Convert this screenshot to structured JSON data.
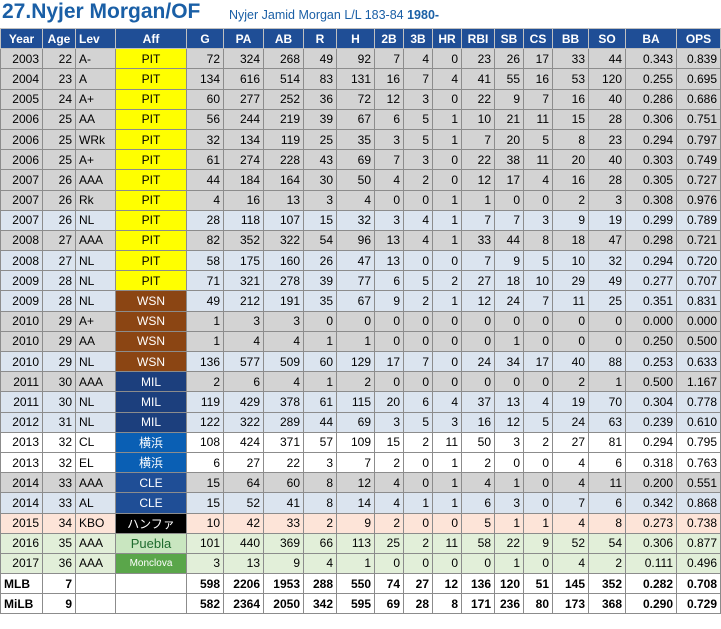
{
  "header": {
    "title": "27.Nyjer Morgan/OF",
    "subtitle": "Nyjer Jamid Morgan L/L 183-84",
    "birth_year": "1980-"
  },
  "columns": [
    "Year",
    "Age",
    "Lev",
    "Aff",
    "G",
    "PA",
    "AB",
    "R",
    "H",
    "2B",
    "3B",
    "HR",
    "RBI",
    "SB",
    "CS",
    "BB",
    "SO",
    "BA",
    "OPS"
  ],
  "colors": {
    "header_bg": "#1f4e96",
    "title_blue": "#1a5fa6",
    "row_gray": "#d3d3d3",
    "row_blue": "#dbe4ef",
    "row_white": "#ffffff",
    "row_pink": "#fde4d8",
    "row_green": "#e2efd9",
    "aff_PIT": "#ffff00",
    "aff_WSN": "#8b4513",
    "aff_MIL": "#1c3f7d",
    "aff_yokohama": "#0a5fb4",
    "aff_CLE": "#1f4e96",
    "aff_hanwha": "#000000",
    "aff_green": "#c9e6c0"
  },
  "rows": [
    {
      "cells": [
        "2003",
        "22",
        "A-",
        "PIT",
        "72",
        "324",
        "268",
        "49",
        "92",
        "7",
        "4",
        "0",
        "23",
        "26",
        "17",
        "33",
        "44",
        "0.343",
        "0.839"
      ],
      "row": "gray",
      "aff_bg": "#ffff00",
      "aff_fg": "#000000"
    },
    {
      "cells": [
        "2004",
        "23",
        "A",
        "PIT",
        "134",
        "616",
        "514",
        "83",
        "131",
        "16",
        "7",
        "4",
        "41",
        "55",
        "16",
        "53",
        "120",
        "0.255",
        "0.695"
      ],
      "row": "gray",
      "aff_bg": "#ffff00",
      "aff_fg": "#000000"
    },
    {
      "cells": [
        "2005",
        "24",
        "A+",
        "PIT",
        "60",
        "277",
        "252",
        "36",
        "72",
        "12",
        "3",
        "0",
        "22",
        "9",
        "7",
        "16",
        "40",
        "0.286",
        "0.686"
      ],
      "row": "gray",
      "aff_bg": "#ffff00",
      "aff_fg": "#000000"
    },
    {
      "cells": [
        "2006",
        "25",
        "AA",
        "PIT",
        "56",
        "244",
        "219",
        "39",
        "67",
        "6",
        "5",
        "1",
        "10",
        "21",
        "11",
        "15",
        "28",
        "0.306",
        "0.751"
      ],
      "row": "gray",
      "aff_bg": "#ffff00",
      "aff_fg": "#000000"
    },
    {
      "cells": [
        "2006",
        "25",
        "WRk",
        "PIT",
        "32",
        "134",
        "119",
        "25",
        "35",
        "3",
        "5",
        "1",
        "7",
        "20",
        "5",
        "8",
        "23",
        "0.294",
        "0.797"
      ],
      "row": "gray",
      "aff_bg": "#ffff00",
      "aff_fg": "#000000"
    },
    {
      "cells": [
        "2006",
        "25",
        "A+",
        "PIT",
        "61",
        "274",
        "228",
        "43",
        "69",
        "7",
        "3",
        "0",
        "22",
        "38",
        "11",
        "20",
        "40",
        "0.303",
        "0.749"
      ],
      "row": "gray",
      "aff_bg": "#ffff00",
      "aff_fg": "#000000"
    },
    {
      "cells": [
        "2007",
        "26",
        "AAA",
        "PIT",
        "44",
        "184",
        "164",
        "30",
        "50",
        "4",
        "2",
        "0",
        "12",
        "17",
        "4",
        "16",
        "28",
        "0.305",
        "0.727"
      ],
      "row": "gray",
      "aff_bg": "#ffff00",
      "aff_fg": "#000000"
    },
    {
      "cells": [
        "2007",
        "26",
        "Rk",
        "PIT",
        "4",
        "16",
        "13",
        "3",
        "4",
        "0",
        "0",
        "1",
        "1",
        "0",
        "0",
        "2",
        "3",
        "0.308",
        "0.976"
      ],
      "row": "gray",
      "aff_bg": "#ffff00",
      "aff_fg": "#000000"
    },
    {
      "cells": [
        "2007",
        "26",
        "NL",
        "PIT",
        "28",
        "118",
        "107",
        "15",
        "32",
        "3",
        "4",
        "1",
        "7",
        "7",
        "3",
        "9",
        "19",
        "0.299",
        "0.789"
      ],
      "row": "blue",
      "aff_bg": "#ffff00",
      "aff_fg": "#000000"
    },
    {
      "cells": [
        "2008",
        "27",
        "AAA",
        "PIT",
        "82",
        "352",
        "322",
        "54",
        "96",
        "13",
        "4",
        "1",
        "33",
        "44",
        "8",
        "18",
        "47",
        "0.298",
        "0.721"
      ],
      "row": "gray",
      "aff_bg": "#ffff00",
      "aff_fg": "#000000"
    },
    {
      "cells": [
        "2008",
        "27",
        "NL",
        "PIT",
        "58",
        "175",
        "160",
        "26",
        "47",
        "13",
        "0",
        "0",
        "7",
        "9",
        "5",
        "10",
        "32",
        "0.294",
        "0.720"
      ],
      "row": "blue",
      "aff_bg": "#ffff00",
      "aff_fg": "#000000"
    },
    {
      "cells": [
        "2009",
        "28",
        "NL",
        "PIT",
        "71",
        "321",
        "278",
        "39",
        "77",
        "6",
        "5",
        "2",
        "27",
        "18",
        "10",
        "29",
        "49",
        "0.277",
        "0.707"
      ],
      "row": "blue",
      "aff_bg": "#ffff00",
      "aff_fg": "#000000"
    },
    {
      "cells": [
        "2009",
        "28",
        "NL",
        "WSN",
        "49",
        "212",
        "191",
        "35",
        "67",
        "9",
        "2",
        "1",
        "12",
        "24",
        "7",
        "11",
        "25",
        "0.351",
        "0.831"
      ],
      "row": "blue",
      "aff_bg": "#8b4513",
      "aff_fg": "#ffffff"
    },
    {
      "cells": [
        "2010",
        "29",
        "A+",
        "WSN",
        "1",
        "3",
        "3",
        "0",
        "0",
        "0",
        "0",
        "0",
        "0",
        "0",
        "0",
        "0",
        "0",
        "0.000",
        "0.000"
      ],
      "row": "gray",
      "aff_bg": "#8b4513",
      "aff_fg": "#ffffff"
    },
    {
      "cells": [
        "2010",
        "29",
        "AA",
        "WSN",
        "1",
        "4",
        "4",
        "1",
        "1",
        "0",
        "0",
        "0",
        "0",
        "1",
        "0",
        "0",
        "0",
        "0.250",
        "0.500"
      ],
      "row": "gray",
      "aff_bg": "#8b4513",
      "aff_fg": "#ffffff"
    },
    {
      "cells": [
        "2010",
        "29",
        "NL",
        "WSN",
        "136",
        "577",
        "509",
        "60",
        "129",
        "17",
        "7",
        "0",
        "24",
        "34",
        "17",
        "40",
        "88",
        "0.253",
        "0.633"
      ],
      "row": "blue",
      "aff_bg": "#8b4513",
      "aff_fg": "#ffffff"
    },
    {
      "cells": [
        "2011",
        "30",
        "AAA",
        "MIL",
        "2",
        "6",
        "4",
        "1",
        "2",
        "0",
        "0",
        "0",
        "0",
        "0",
        "0",
        "2",
        "1",
        "0.500",
        "1.167"
      ],
      "row": "gray",
      "aff_bg": "#1c3f7d",
      "aff_fg": "#ffffff"
    },
    {
      "cells": [
        "2011",
        "30",
        "NL",
        "MIL",
        "119",
        "429",
        "378",
        "61",
        "115",
        "20",
        "6",
        "4",
        "37",
        "13",
        "4",
        "19",
        "70",
        "0.304",
        "0.778"
      ],
      "row": "blue",
      "aff_bg": "#1c3f7d",
      "aff_fg": "#ffffff"
    },
    {
      "cells": [
        "2012",
        "31",
        "NL",
        "MIL",
        "122",
        "322",
        "289",
        "44",
        "69",
        "3",
        "5",
        "3",
        "16",
        "12",
        "5",
        "24",
        "63",
        "0.239",
        "0.610"
      ],
      "row": "blue",
      "aff_bg": "#1c3f7d",
      "aff_fg": "#ffffff"
    },
    {
      "cells": [
        "2013",
        "32",
        "CL",
        "横浜",
        "108",
        "424",
        "371",
        "57",
        "109",
        "15",
        "2",
        "11",
        "50",
        "3",
        "2",
        "27",
        "81",
        "0.294",
        "0.795"
      ],
      "row": "white",
      "aff_bg": "#0a5fb4",
      "aff_fg": "#ffffff"
    },
    {
      "cells": [
        "2013",
        "32",
        "EL",
        "横浜",
        "6",
        "27",
        "22",
        "3",
        "7",
        "2",
        "0",
        "1",
        "2",
        "0",
        "0",
        "4",
        "6",
        "0.318",
        "0.763"
      ],
      "row": "white",
      "aff_bg": "#0a5fb4",
      "aff_fg": "#ffffff"
    },
    {
      "cells": [
        "2014",
        "33",
        "AAA",
        "CLE",
        "15",
        "64",
        "60",
        "8",
        "12",
        "4",
        "0",
        "1",
        "4",
        "1",
        "0",
        "4",
        "11",
        "0.200",
        "0.551"
      ],
      "row": "gray",
      "aff_bg": "#1f4e96",
      "aff_fg": "#ffffff"
    },
    {
      "cells": [
        "2014",
        "33",
        "AL",
        "CLE",
        "15",
        "52",
        "41",
        "8",
        "14",
        "4",
        "1",
        "1",
        "6",
        "3",
        "0",
        "7",
        "6",
        "0.342",
        "0.868"
      ],
      "row": "blue",
      "aff_bg": "#1f4e96",
      "aff_fg": "#ffffff"
    },
    {
      "cells": [
        "2015",
        "34",
        "KBO",
        "ハンファ",
        "10",
        "42",
        "33",
        "2",
        "9",
        "2",
        "0",
        "0",
        "5",
        "1",
        "1",
        "4",
        "8",
        "0.273",
        "0.738"
      ],
      "row": "pink",
      "aff_bg": "#000000",
      "aff_fg": "#ffffff"
    },
    {
      "cells": [
        "2016",
        "35",
        "AAA",
        "Puebla",
        "101",
        "440",
        "369",
        "66",
        "113",
        "25",
        "2",
        "11",
        "58",
        "22",
        "9",
        "52",
        "54",
        "0.306",
        "0.877"
      ],
      "row": "green",
      "aff_bg": "#c9e6c0",
      "aff_fg": "#1f6b2e"
    },
    {
      "cells": [
        "2017",
        "36",
        "AAA",
        "Monclova",
        "3",
        "13",
        "9",
        "4",
        "1",
        "0",
        "0",
        "0",
        "0",
        "1",
        "0",
        "4",
        "2",
        "0.111",
        "0.496"
      ],
      "row": "green",
      "aff_bg": "#5aa64a",
      "aff_fg": "#ffffff"
    }
  ],
  "totals": [
    {
      "cells": [
        "MLB",
        "7",
        "",
        "",
        "598",
        "2206",
        "1953",
        "288",
        "550",
        "74",
        "27",
        "12",
        "136",
        "120",
        "51",
        "145",
        "352",
        "0.282",
        "0.708"
      ]
    },
    {
      "cells": [
        "MiLB",
        "9",
        "",
        "",
        "582",
        "2364",
        "2050",
        "342",
        "595",
        "69",
        "28",
        "8",
        "171",
        "236",
        "80",
        "173",
        "368",
        "0.290",
        "0.729"
      ]
    }
  ]
}
